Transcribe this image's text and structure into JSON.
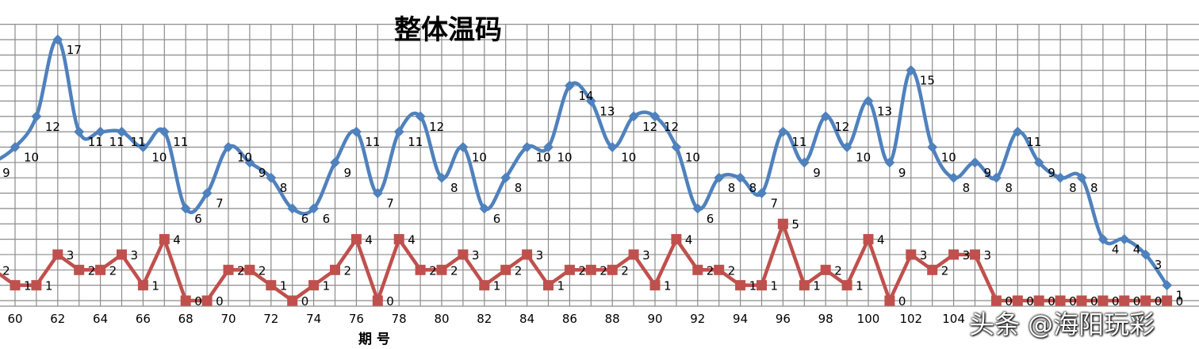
{
  "chart_data": {
    "type": "line",
    "title": "整体温码",
    "xlabel": "期 号",
    "ylabel": "",
    "x": [
      59,
      60,
      61,
      62,
      63,
      64,
      65,
      66,
      67,
      68,
      69,
      70,
      71,
      72,
      73,
      74,
      75,
      76,
      77,
      78,
      79,
      80,
      81,
      82,
      83,
      84,
      85,
      86,
      87,
      88,
      89,
      90,
      91,
      92,
      93,
      94,
      95,
      96,
      97,
      98,
      99,
      100,
      101,
      102,
      103,
      104,
      105,
      106,
      107,
      108,
      109,
      110,
      111,
      112,
      113,
      114
    ],
    "xlim": [
      59,
      114
    ],
    "xticks": [
      60,
      62,
      64,
      66,
      68,
      70,
      72,
      74,
      76,
      78,
      80,
      82,
      84,
      86,
      88,
      90,
      92,
      94,
      96,
      98,
      100,
      102,
      104
    ],
    "ylim": [
      0,
      18
    ],
    "grid": true,
    "series": [
      {
        "name": "",
        "color": "#4F81BD",
        "marker": "diamond",
        "values": [
          9,
          10,
          12,
          17,
          11,
          11,
          11,
          10,
          11,
          6,
          7,
          10,
          9,
          8,
          6,
          6,
          9,
          11,
          7,
          11,
          12,
          8,
          10,
          6,
          8,
          10,
          10,
          14,
          13,
          10,
          12,
          12,
          10,
          6,
          8,
          8,
          7,
          11,
          9,
          12,
          10,
          13,
          9,
          15,
          10,
          8,
          9,
          8,
          11,
          9,
          8,
          8,
          4,
          4,
          3,
          1
        ],
        "labels": [
          "9",
          "10",
          "12",
          "17",
          "11",
          "11",
          "11",
          "10",
          "11",
          "6",
          "7",
          "10",
          "9",
          "8",
          "6",
          "6",
          "9",
          "11",
          "7",
          "11",
          "12",
          "8",
          "10",
          "6",
          "8",
          "10",
          "10",
          "14",
          "13",
          "10",
          "12",
          "12",
          "10",
          "6",
          "8",
          "8",
          "7",
          "11",
          "9",
          "12",
          "10",
          "13",
          "9",
          "15",
          "10",
          "8",
          "9",
          "8",
          "11",
          "9",
          "8",
          "8",
          "4",
          "4",
          "3",
          "1"
        ]
      },
      {
        "name": "",
        "color": "#C0504D",
        "marker": "square",
        "values": [
          2,
          1,
          1,
          3,
          2,
          2,
          3,
          1,
          4,
          0,
          0,
          2,
          2,
          1,
          0,
          1,
          2,
          4,
          0,
          4,
          2,
          2,
          3,
          1,
          2,
          3,
          1,
          2,
          2,
          2,
          3,
          1,
          4,
          2,
          2,
          1,
          1,
          5,
          1,
          2,
          1,
          4,
          0,
          3,
          2,
          3,
          3,
          0,
          0,
          0,
          0,
          0,
          0,
          0,
          0,
          0
        ],
        "labels": [
          "2",
          "1",
          "1",
          "3",
          "2",
          "2",
          "3",
          "1",
          "4",
          "0",
          "0",
          "2",
          "2",
          "1",
          "0",
          "1",
          "2",
          "4",
          "0",
          "4",
          "2",
          "2",
          "3",
          "1",
          "2",
          "3",
          "1",
          "2",
          "2",
          "2",
          "3",
          "1",
          "4",
          "2",
          "2",
          "1",
          "1",
          "5",
          "1",
          "2",
          "1",
          "4",
          "0",
          "3",
          "2",
          "3",
          "3",
          "0",
          "0",
          "0",
          "0",
          "0",
          "0",
          "0",
          "0",
          "0"
        ]
      }
    ]
  },
  "watermark": "头条 @海阳玩彩"
}
